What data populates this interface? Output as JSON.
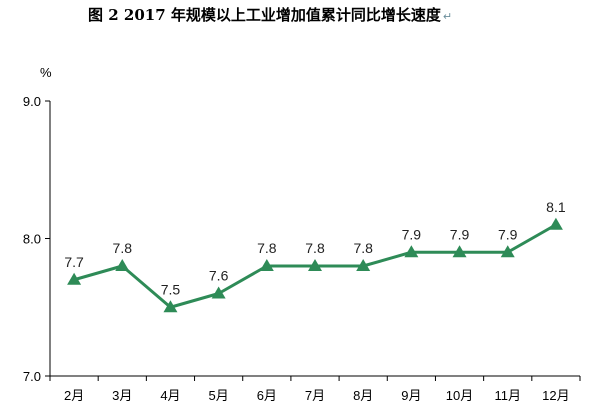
{
  "chart_data": {
    "type": "line",
    "title": "图 2   2017 年规模以上工业增加值累计同比增长速度",
    "title_mark": "↵",
    "ylabel": "%",
    "categories": [
      "2月",
      "3月",
      "4月",
      "5月",
      "6月",
      "7月",
      "8月",
      "9月",
      "10月",
      "11月",
      "12月"
    ],
    "series": [
      {
        "values": [
          7.7,
          7.8,
          7.5,
          7.6,
          7.8,
          7.8,
          7.8,
          7.9,
          7.9,
          7.9,
          8.1
        ]
      }
    ],
    "data_labels": [
      "7.7",
      "7.8",
      "7.5",
      "7.6",
      "7.8",
      "7.8",
      "7.8",
      "7.9",
      "7.9",
      "7.9",
      "8.1"
    ],
    "y_ticks": [
      "9.0",
      "8.0",
      "7.0"
    ],
    "ylim": [
      7.0,
      9.0
    ],
    "grid": false,
    "colors": {
      "line": "#2e8b57",
      "marker": "#2e8b57",
      "axis": "#000000"
    }
  }
}
